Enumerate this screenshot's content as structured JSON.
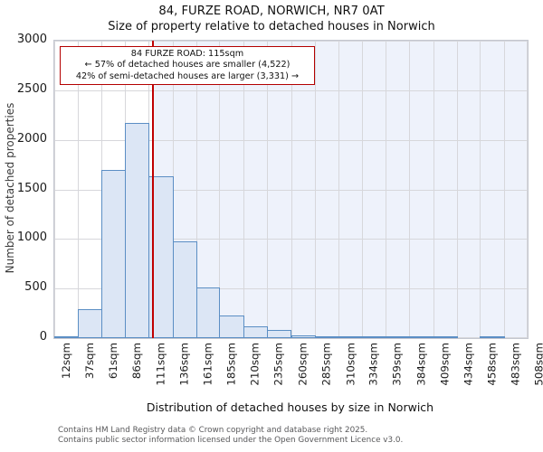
{
  "title": "84, FURZE ROAD, NORWICH, NR7 0AT",
  "subtitle": "Size of property relative to detached houses in Norwich",
  "annotation": {
    "line1": "84 FURZE ROAD: 115sqm",
    "line2": "← 57% of detached houses are smaller (4,522)",
    "line3": "42% of semi-detached houses are larger (3,331) →"
  },
  "chart_data": {
    "type": "bar",
    "subtype": "histogram",
    "title": "84, FURZE ROAD, NORWICH, NR7 0AT",
    "subtitle": "Size of property relative to detached houses in Norwich",
    "xlabel": "Distribution of detached houses by size in Norwich",
    "ylabel": "Number of detached properties",
    "ylim": [
      0,
      3000
    ],
    "yticks": [
      0,
      500,
      1000,
      1500,
      2000,
      2500,
      3000
    ],
    "bin_edges_sqm": [
      12,
      37,
      61,
      86,
      111,
      136,
      161,
      185,
      210,
      235,
      260,
      285,
      310,
      334,
      359,
      384,
      409,
      434,
      458,
      483,
      508
    ],
    "x_tick_labels": [
      "12sqm",
      "37sqm",
      "61sqm",
      "86sqm",
      "111sqm",
      "136sqm",
      "161sqm",
      "185sqm",
      "210sqm",
      "235sqm",
      "260sqm",
      "285sqm",
      "310sqm",
      "334sqm",
      "359sqm",
      "384sqm",
      "409sqm",
      "434sqm",
      "458sqm",
      "483sqm",
      "508sqm"
    ],
    "values": [
      15,
      290,
      1700,
      2170,
      1630,
      980,
      510,
      230,
      120,
      80,
      30,
      15,
      9,
      6,
      5,
      5,
      5,
      0,
      5,
      0
    ],
    "marker_value_sqm": 115,
    "grid": true,
    "legend": false,
    "colors": {
      "bar_fill": "#dce6f5",
      "bar_stroke": "#5b8ec4",
      "marker_line": "#c00000",
      "annotation_border": "#b40000",
      "shade_right_of_marker": "#eef2fb",
      "gridline": "#d7d7db"
    }
  },
  "footer": {
    "line1": "Contains HM Land Registry data © Crown copyright and database right 2025.",
    "line2": "Contains public sector information licensed under the Open Government Licence v3.0."
  }
}
